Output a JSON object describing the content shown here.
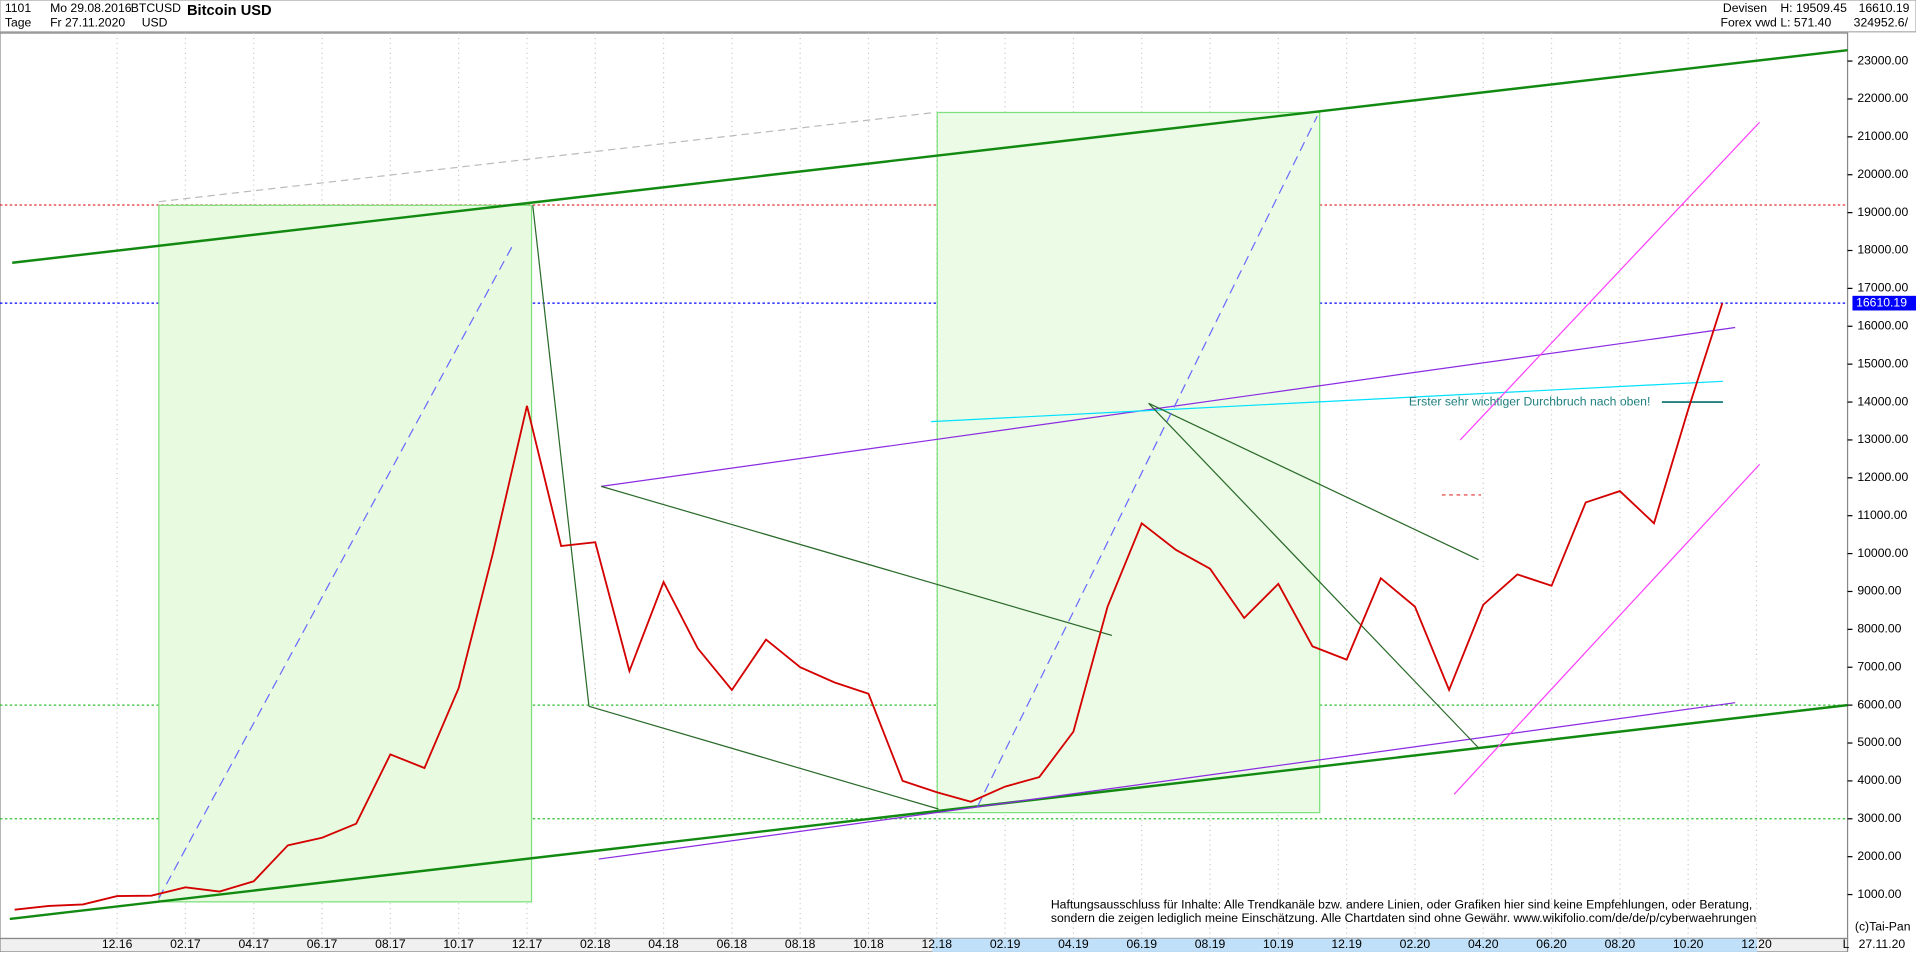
{
  "header": {
    "id": "1101",
    "period": "Tage",
    "start": "Mo 29.08.2016",
    "end": "Fr 27.11.2020",
    "symbol": "BTCUSD",
    "currency": "USD",
    "name": "Bitcoin USD",
    "market": "Devisen",
    "source": "Forex vwd",
    "high": "H: 19509.45",
    "low": "L: 571.40",
    "last": "16610.19",
    "volume": "324952.6/",
    "copyright": "(c)Tai-Pan",
    "date": "27.11.20",
    "scale": "L"
  },
  "chart_data": {
    "type": "line",
    "title": "Bitcoin USD",
    "categories": [
      null,
      null,
      null,
      "12.16",
      null,
      "02.17",
      null,
      "04.17",
      null,
      "06.17",
      null,
      "08.17",
      null,
      "10.17",
      null,
      "12.17",
      null,
      "02.18",
      null,
      "04.18",
      null,
      "06.18",
      null,
      "08.18",
      null,
      "10.18",
      null,
      "12.18",
      null,
      "02.19",
      null,
      "04.19",
      null,
      "06.19",
      null,
      "08.19",
      null,
      "10.19",
      null,
      "12.19",
      null,
      "02.20",
      null,
      "04.20",
      null,
      "06.20",
      null,
      "08.20",
      null,
      "10.20",
      null,
      "12.20"
    ],
    "series": [
      {
        "name": "BTCUSD",
        "color": "#d40000",
        "values": [
          600,
          700,
          740,
          960,
          970,
          1190,
          1080,
          1350,
          2300,
          2500,
          2870,
          4700,
          4340,
          6450,
          10000,
          13900,
          10200,
          10300,
          6900,
          9250,
          7500,
          6400,
          7730,
          7000,
          6600,
          6300,
          4000,
          3700,
          3450,
          3850,
          4100,
          5300,
          8600,
          10800,
          10100,
          9600,
          8300,
          9200,
          7550,
          7200,
          9350,
          8600,
          6400,
          8650,
          9450,
          9150,
          11350,
          11650,
          10800,
          13800,
          16610.19,
          null
        ]
      }
    ],
    "ylim": [
      -160,
      24030
    ],
    "yticks": [
      {
        "value": 1000,
        "label": "1000.00"
      },
      {
        "value": 2000,
        "label": "2000.00"
      },
      {
        "value": 3000,
        "label": "3000.00"
      },
      {
        "value": 4000,
        "label": "4000.00"
      },
      {
        "value": 5000,
        "label": "5000.00"
      },
      {
        "value": 6000,
        "label": "6000.00"
      },
      {
        "value": 7000,
        "label": "7000.00"
      },
      {
        "value": 8000,
        "label": "8000.00"
      },
      {
        "value": 9000,
        "label": "9000.00"
      },
      {
        "value": 10000,
        "label": "10000.00"
      },
      {
        "value": 11000,
        "label": "11000.00"
      },
      {
        "value": 12000,
        "label": "12000.00"
      },
      {
        "value": 13000,
        "label": "13000.00"
      },
      {
        "value": 14000,
        "label": "14000.00"
      },
      {
        "value": 15000,
        "label": "15000.00"
      },
      {
        "value": 16000,
        "label": "16000.00"
      },
      {
        "value": 17000,
        "label": "17000.00"
      },
      {
        "value": 18000,
        "label": "18000.00"
      },
      {
        "value": 19000,
        "label": "19000.00"
      },
      {
        "value": 20000,
        "label": "20000.00"
      },
      {
        "value": 21000,
        "label": "21000.00"
      },
      {
        "value": 22000,
        "label": "22000.00"
      },
      {
        "value": 23000,
        "label": "23000.00"
      }
    ],
    "grid": true,
    "hlines": [
      {
        "value": 19200,
        "color": "#e03030"
      },
      {
        "value": 16610.19,
        "label": "16610.19",
        "color": "#0000ff"
      },
      {
        "value": 6000,
        "color": "#30c030"
      },
      {
        "value": 3000,
        "color": "#30c030"
      }
    ],
    "annotation": "Erster sehr wichtiger Durchbruch nach oben!",
    "disclaimer": [
      "Haftungsausschluss für Inhalte: Alle Trendkanäle bzw. andere Linien, oder Grafiken hier sind keine Empfehlungen, oder Beratung,",
      "sondern die zeigen lediglich meine  Einschätzung. Alle Chartdaten sind ohne Gewähr.  www.wikifolio.com/de/de/p/cyberwaehrungen"
    ]
  }
}
